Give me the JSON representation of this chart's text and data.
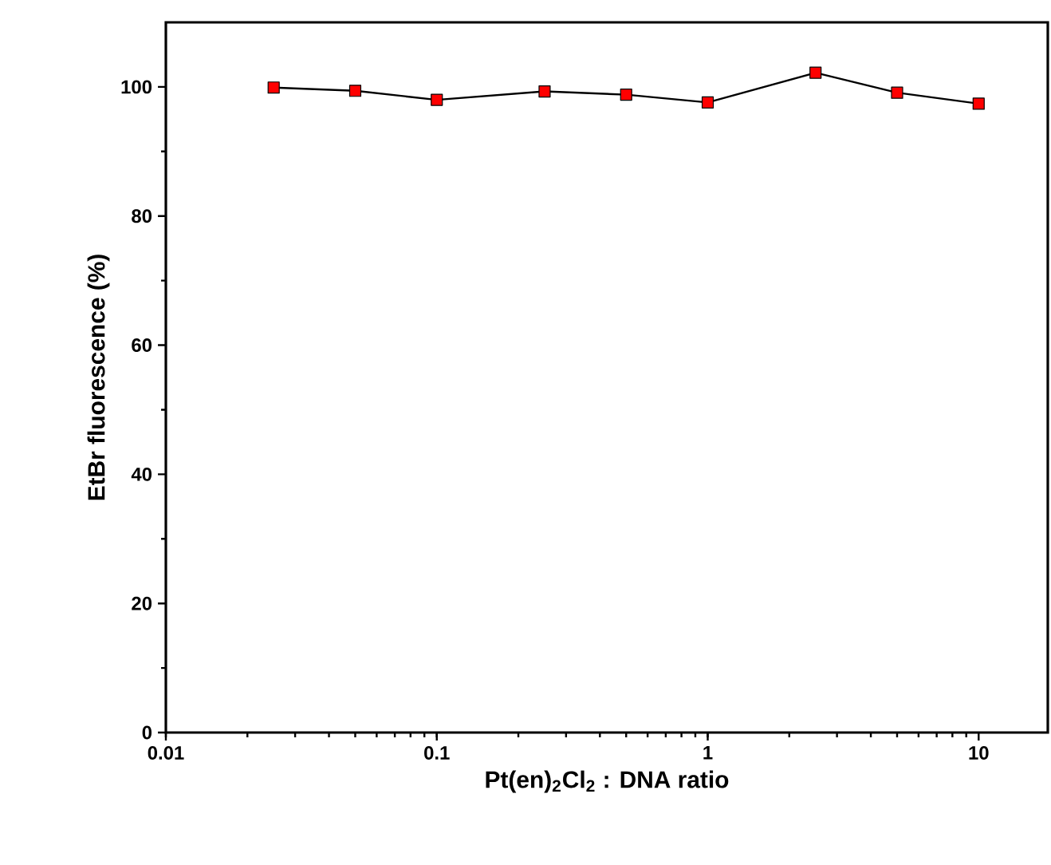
{
  "chart_data": {
    "type": "line",
    "xlabel": "Pt(en)$_{2}$Cl$_{2}$ : DNA ratio",
    "ylabel": "EtBr fluorescence (%)",
    "log": "x",
    "xlim": [
      0.01,
      18
    ],
    "ylim": [
      0,
      110
    ],
    "xticks": [
      {
        "value": 0.01,
        "label": "0.01"
      },
      {
        "value": 0.1,
        "label": "0.1"
      },
      {
        "value": 1,
        "label": "1"
      },
      {
        "value": 10,
        "label": "10"
      }
    ],
    "yticks": [
      0,
      20,
      40,
      60,
      80,
      100
    ],
    "marker": "square",
    "line_style": "solid",
    "series": [
      {
        "color": "#ff0000",
        "x": [
          0.025,
          0.05,
          0.1,
          0.25,
          0.5,
          1,
          2.5,
          5,
          10
        ],
        "values": [
          99.9,
          99.4,
          98.0,
          99.3,
          98.8,
          97.6,
          102.2,
          99.1,
          97.4
        ]
      }
    ]
  }
}
